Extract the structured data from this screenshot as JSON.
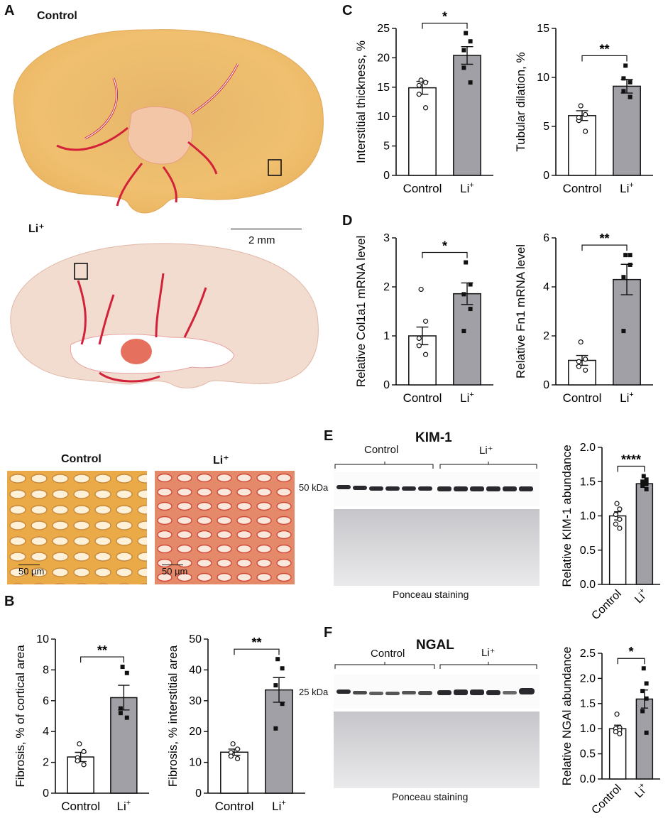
{
  "panels": {
    "A": {
      "letter": "A",
      "kidney_labels": [
        "Control",
        "Li⁺"
      ],
      "scale_bar": "2 mm",
      "micro_labels": [
        "Control",
        "Li⁺"
      ],
      "micro_scale": "50 µm"
    },
    "B": {
      "letter": "B"
    },
    "C": {
      "letter": "C"
    },
    "D": {
      "letter": "D"
    },
    "E": {
      "letter": "E",
      "blot_title": "KIM-1",
      "group_labels": [
        "Control",
        "Li⁺"
      ],
      "marker": "50 kDa",
      "stain_caption": "Ponceau staining"
    },
    "F": {
      "letter": "F",
      "blot_title": "NGAL",
      "group_labels": [
        "Control",
        "Li⁺"
      ],
      "marker": "25 kDa",
      "stain_caption": "Ponceau staining"
    }
  },
  "colors": {
    "control_bar": "#ffffff",
    "li_bar": "#a0a0a6",
    "axis": "#111111"
  },
  "chart_data": [
    {
      "id": "c-interstitial",
      "type": "bar",
      "categories": [
        "Control",
        "Li+"
      ],
      "ylabel": "Interstitial thickness, %",
      "ylim": [
        0,
        25
      ],
      "yticks": [
        0,
        5,
        10,
        15,
        20,
        25
      ],
      "values": [
        14.9,
        20.4
      ],
      "sem": [
        1.1,
        1.5
      ],
      "significance": "*",
      "points": [
        [
          16.2,
          15.8,
          13.8,
          11.5,
          15.3
        ],
        [
          24.2,
          22.8,
          21.3,
          15.8,
          18.3
        ]
      ]
    },
    {
      "id": "c-tubular",
      "type": "bar",
      "categories": [
        "Control",
        "Li+"
      ],
      "ylabel": "Tubular dilation,  %",
      "ylim": [
        0,
        15
      ],
      "yticks": [
        0,
        5,
        10,
        15
      ],
      "values": [
        6.1,
        9.1
      ],
      "sem": [
        0.5,
        0.7
      ],
      "significance": "**",
      "points": [
        [
          7.1,
          6.2,
          5.6,
          4.5,
          5.9
        ],
        [
          11.2,
          9.5,
          8.6,
          8.0,
          9.9
        ]
      ]
    },
    {
      "id": "d-col1a1",
      "type": "bar",
      "categories": [
        "Control",
        "Li+"
      ],
      "ylabel": "Relative Col1a1 mRNA level",
      "ylim": [
        0,
        3
      ],
      "yticks": [
        0,
        1,
        2,
        3
      ],
      "values": [
        1.0,
        1.86
      ],
      "sem": [
        0.18,
        0.22
      ],
      "significance": "*",
      "points": [
        [
          1.95,
          1.3,
          0.95,
          0.62,
          0.8
        ],
        [
          2.5,
          2.05,
          1.85,
          1.55,
          1.1
        ]
      ]
    },
    {
      "id": "d-fn1",
      "type": "bar",
      "categories": [
        "Control",
        "Li+"
      ],
      "ylabel": "Relative Fn1 mRNA level",
      "ylim": [
        0,
        6
      ],
      "yticks": [
        0,
        2,
        4,
        6
      ],
      "values": [
        1.0,
        4.3
      ],
      "sem": [
        0.2,
        0.62
      ],
      "significance": "**",
      "points": [
        [
          1.75,
          1.05,
          0.95,
          0.6,
          0.75
        ],
        [
          5.3,
          5.3,
          4.4,
          4.9,
          2.2
        ]
      ]
    },
    {
      "id": "b-cortical",
      "type": "bar",
      "categories": [
        "Control",
        "Li+"
      ],
      "ylabel": "Fibrosis, % of cortical area",
      "ylim": [
        0,
        10
      ],
      "yticks": [
        0,
        2,
        4,
        6,
        8,
        10
      ],
      "values": [
        2.35,
        6.2
      ],
      "sem": [
        0.3,
        0.8
      ],
      "significance": "**",
      "points": [
        [
          3.2,
          2.7,
          2.3,
          1.85,
          2.1
        ],
        [
          8.2,
          7.8,
          5.5,
          4.9,
          5.2
        ]
      ]
    },
    {
      "id": "b-interstitial",
      "type": "bar",
      "categories": [
        "Control",
        "Li+"
      ],
      "ylabel": "Fibrosis, % interstitial area",
      "ylim": [
        0,
        50
      ],
      "yticks": [
        0,
        10,
        20,
        30,
        40,
        50
      ],
      "values": [
        13.3,
        33.5
      ],
      "sem": [
        1.0,
        4.0
      ],
      "significance": "**",
      "points": [
        [
          16.0,
          14.3,
          13.2,
          11.2,
          12.0
        ],
        [
          43.5,
          40.5,
          35.0,
          29.0,
          21.0
        ]
      ]
    },
    {
      "id": "e-kim1",
      "type": "bar",
      "categories": [
        "Control",
        "Li+"
      ],
      "ylabel": "Relative KIM-1 abundance",
      "ylim": [
        0,
        2.0
      ],
      "yticks": [
        0.0,
        0.5,
        1.0,
        1.5,
        2.0
      ],
      "values": [
        1.0,
        1.47
      ],
      "sem": [
        0.06,
        0.03
      ],
      "significance": "****",
      "rotated_xlabels": true,
      "points": [
        [
          1.18,
          1.1,
          1.02,
          0.95,
          0.88,
          0.82
        ],
        [
          1.58,
          1.53,
          1.5,
          1.47,
          1.44,
          1.39
        ]
      ]
    },
    {
      "id": "f-ngal",
      "type": "bar",
      "categories": [
        "Control",
        "Li+"
      ],
      "ylabel": "Relative NGAl abundance",
      "ylim": [
        0,
        2.5
      ],
      "yticks": [
        0.0,
        0.5,
        1.0,
        1.5,
        2.0,
        2.5
      ],
      "values": [
        1.0,
        1.59
      ],
      "sem": [
        0.07,
        0.18
      ],
      "significance": "*",
      "rotated_xlabels": true,
      "points": [
        [
          1.29,
          1.02,
          1.0,
          0.97,
          0.94,
          0.9
        ],
        [
          2.2,
          1.9,
          1.75,
          1.6,
          1.35,
          0.92
        ]
      ]
    }
  ]
}
